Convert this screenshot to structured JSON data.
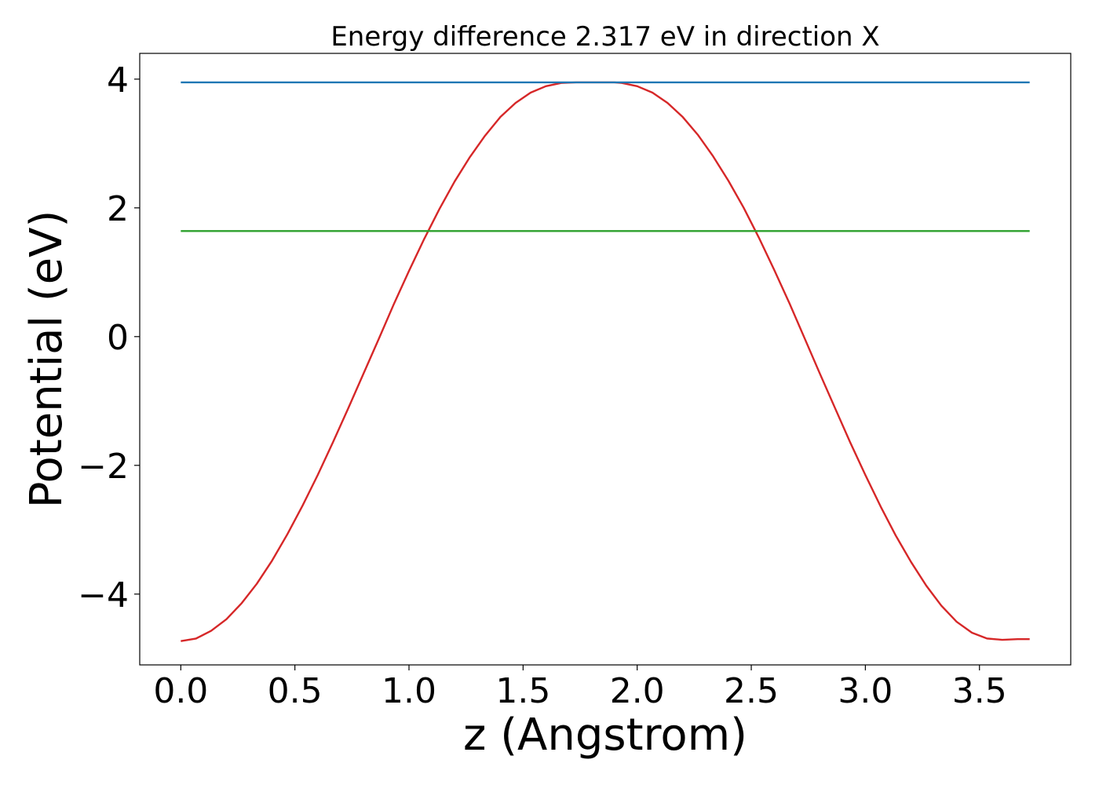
{
  "chart_data": {
    "type": "line",
    "title": "Energy difference 2.317 eV in direction X",
    "xlabel": "z (Angstrom)",
    "ylabel": "Potential (eV)",
    "xlim": [
      -0.18,
      3.9
    ],
    "ylim": [
      -5.1,
      4.4
    ],
    "xticks": [
      0.0,
      0.5,
      1.0,
      1.5,
      2.0,
      2.5,
      3.0,
      3.5
    ],
    "xtick_labels": [
      "0.0",
      "0.5",
      "1.0",
      "1.5",
      "2.0",
      "2.5",
      "3.0",
      "3.5"
    ],
    "yticks": [
      -4,
      -2,
      0,
      2,
      4
    ],
    "ytick_labels": [
      "−4",
      "−2",
      "0",
      "2",
      "4"
    ],
    "grid": false,
    "series": [
      {
        "color": "#d62728",
        "x": [
          0.0,
          0.067,
          0.133,
          0.2,
          0.267,
          0.333,
          0.4,
          0.467,
          0.533,
          0.6,
          0.667,
          0.733,
          0.8,
          0.867,
          0.933,
          1.0,
          1.067,
          1.133,
          1.2,
          1.267,
          1.333,
          1.4,
          1.467,
          1.533,
          1.6,
          1.667,
          1.733,
          1.8,
          1.867,
          1.9,
          1.933,
          2.0,
          2.067,
          2.133,
          2.2,
          2.267,
          2.333,
          2.4,
          2.467,
          2.533,
          2.6,
          2.667,
          2.733,
          2.8,
          2.867,
          2.933,
          3.0,
          3.067,
          3.133,
          3.2,
          3.267,
          3.333,
          3.4,
          3.467,
          3.533,
          3.6,
          3.667,
          3.72
        ],
        "y": [
          -4.73,
          -4.69,
          -4.57,
          -4.39,
          -4.14,
          -3.84,
          -3.48,
          -3.07,
          -2.63,
          -2.15,
          -1.64,
          -1.12,
          -0.58,
          -0.04,
          0.5,
          1.02,
          1.52,
          1.98,
          2.41,
          2.79,
          3.12,
          3.41,
          3.63,
          3.79,
          3.89,
          3.94,
          3.95,
          3.95,
          3.95,
          3.95,
          3.94,
          3.89,
          3.79,
          3.63,
          3.41,
          3.13,
          2.8,
          2.42,
          2.0,
          1.54,
          1.04,
          0.52,
          -0.02,
          -0.57,
          -1.11,
          -1.64,
          -2.15,
          -2.64,
          -3.09,
          -3.5,
          -3.87,
          -4.18,
          -4.43,
          -4.6,
          -4.69,
          -4.71,
          -4.7,
          -4.7
        ]
      },
      {
        "color": "#1f77b4",
        "x": [
          0.0,
          3.72
        ],
        "y": [
          3.95,
          3.95
        ]
      },
      {
        "color": "#2ca02c",
        "x": [
          0.0,
          3.72
        ],
        "y": [
          1.64,
          1.64
        ]
      }
    ]
  }
}
